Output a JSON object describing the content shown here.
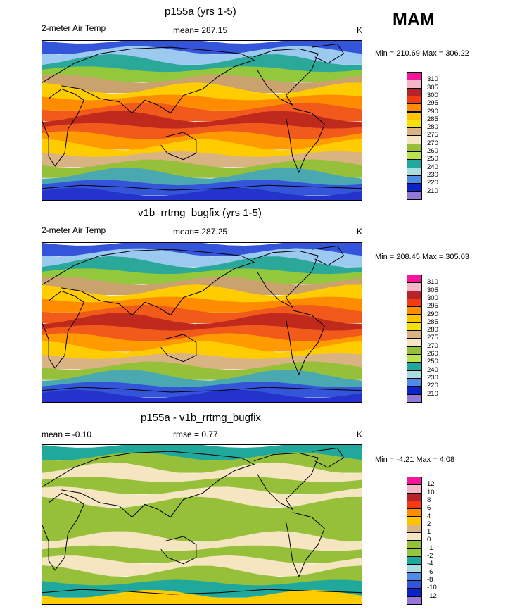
{
  "season": "MAM",
  "panels": [
    {
      "id": "p155a",
      "title": "p155a (yrs 1-5)",
      "left_label": "2-meter Air Temp",
      "center_label": "mean= 287.15",
      "units": "K",
      "minmax": "Min = 210.69 Max = 306.22",
      "colorbar": {
        "labels": [
          "310",
          "305",
          "300",
          "295",
          "290",
          "285",
          "280",
          "275",
          "270",
          "260",
          "250",
          "240",
          "230",
          "220",
          "210"
        ],
        "colors": [
          "#f7169a",
          "#f7b6c7",
          "#b8222b",
          "#f23b13",
          "#ff8c00",
          "#ffc300",
          "#f2e10c",
          "#d9b382",
          "#f5e6c1",
          "#96c03a",
          "#b7e44f",
          "#21a89c",
          "#a9dde0",
          "#4e8ce6",
          "#0d22c9",
          "#9377d9"
        ]
      },
      "bands": [
        "#3454d9",
        "#9cc9f0",
        "#2aa89a",
        "#93c73c",
        "#c9a26e",
        "#ffcc00",
        "#ff8c00",
        "#f25a1b",
        "#c02a1d",
        "#f25a1b",
        "#ff9a00",
        "#ffcc00",
        "#d9b382",
        "#96c03a",
        "#4aa8b0",
        "#3454d9",
        "#2433cc"
      ]
    },
    {
      "id": "v1b",
      "title": "v1b_rrtmg_bugfix (yrs 1-5)",
      "left_label": "2-meter Air Temp",
      "center_label": "mean= 287.25",
      "units": "K",
      "minmax": "Min = 208.45 Max = 305.03",
      "colorbar": {
        "labels": [
          "310",
          "305",
          "300",
          "295",
          "290",
          "285",
          "280",
          "275",
          "270",
          "260",
          "250",
          "240",
          "230",
          "220",
          "210"
        ],
        "colors": [
          "#f7169a",
          "#f7b6c7",
          "#b8222b",
          "#f23b13",
          "#ff8c00",
          "#ffc300",
          "#f2e10c",
          "#d9b382",
          "#f5e6c1",
          "#96c03a",
          "#b7e44f",
          "#21a89c",
          "#a9dde0",
          "#4e8ce6",
          "#0d22c9",
          "#9377d9"
        ]
      },
      "bands": [
        "#3454d9",
        "#9cc9f0",
        "#2aa89a",
        "#93c73c",
        "#c9a26e",
        "#ffcc00",
        "#ff8c00",
        "#f25a1b",
        "#c02a1d",
        "#f25a1b",
        "#ff9a00",
        "#ffcc00",
        "#d9b382",
        "#96c03a",
        "#4aa8b0",
        "#3454d9",
        "#2433cc"
      ]
    },
    {
      "id": "diff",
      "title": "p155a - v1b_rrtmg_bugfix",
      "left_label": "mean =  -0.10",
      "center_label": "rmse =   0.77",
      "units": "K",
      "minmax": "Min =  -4.21 Max =   4.08",
      "colorbar": {
        "labels": [
          "12",
          "10",
          "8",
          "6",
          "4",
          "2",
          "1",
          "0",
          "-1",
          "-2",
          "-4",
          "-6",
          "-8",
          "-10",
          "-12"
        ],
        "colors": [
          "#f7169a",
          "#f7b6c7",
          "#b8222b",
          "#f23b13",
          "#ff8c00",
          "#ffc300",
          "#d9b382",
          "#f5e6c1",
          "#96c03a",
          "#93c73c",
          "#21a89c",
          "#a9dde0",
          "#4e8ce6",
          "#3454d9",
          "#0d22c9",
          "#9377d9"
        ]
      },
      "bands": [
        "#21a89c",
        "#96c03a",
        "#f5e6c1",
        "#96c03a",
        "#f5e6c1",
        "#96c03a",
        "#96c03a",
        "#96c03a",
        "#f5e6c1",
        "#96c03a",
        "#f5e6c1",
        "#96c03a",
        "#21a89c",
        "#ffcc00"
      ]
    }
  ]
}
